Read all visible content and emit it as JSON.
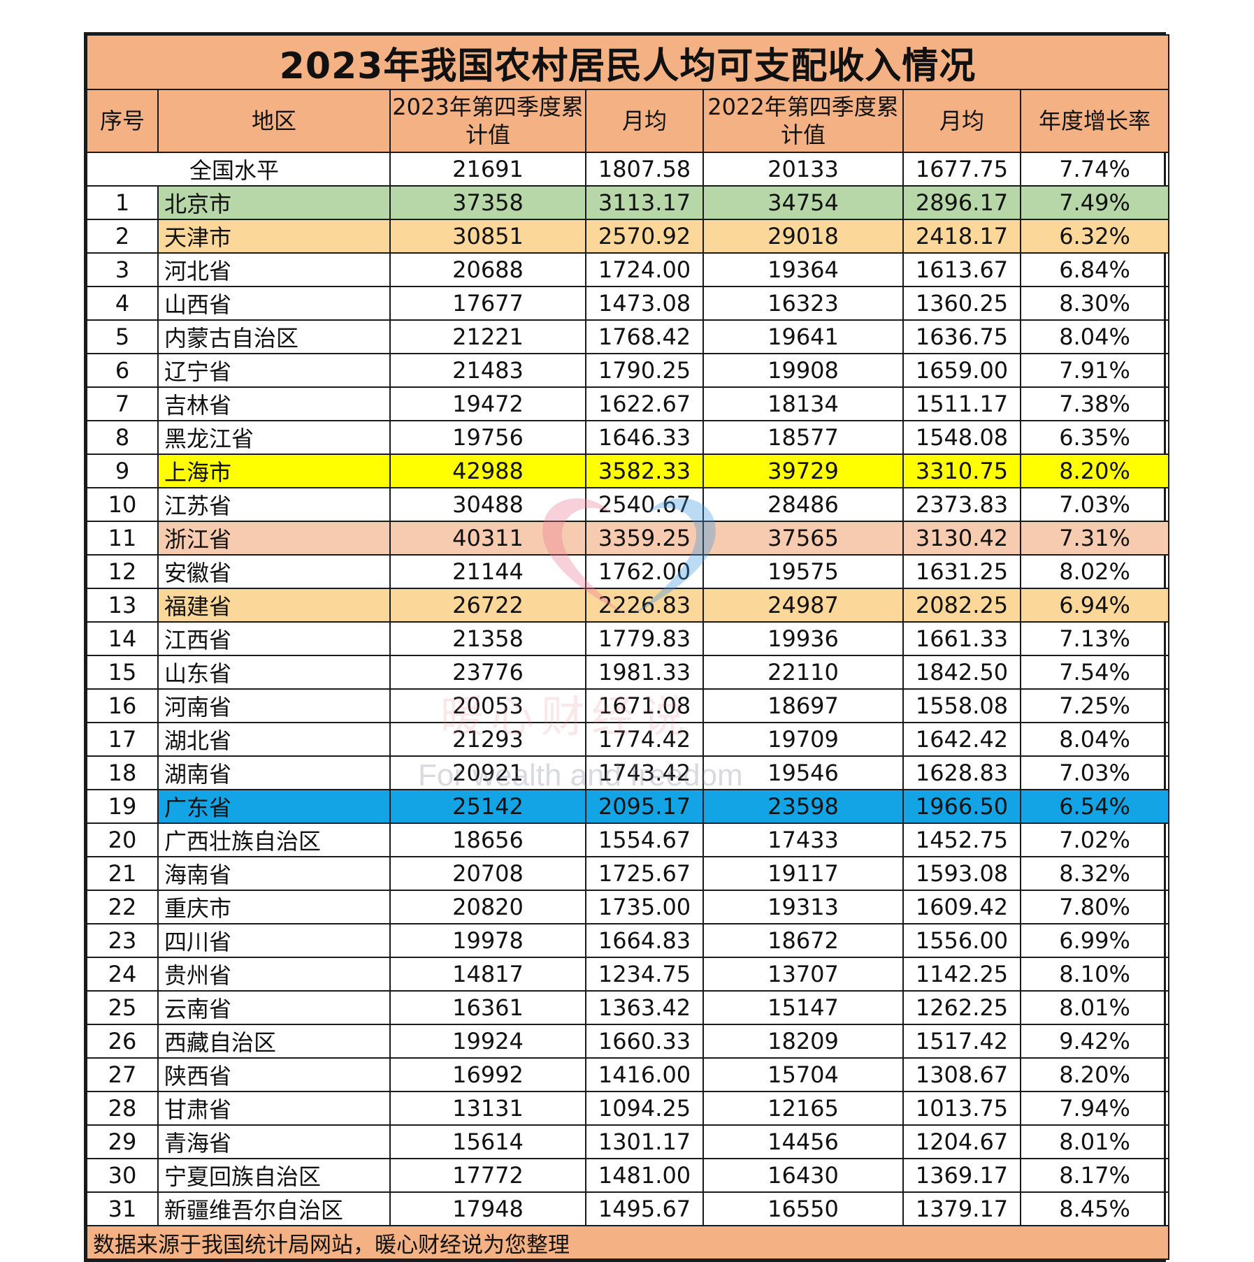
{
  "title": "2023年我国农村居民人均可支配收入情况",
  "headers": [
    "序号",
    "地区",
    "2023年第四季度累计值",
    "月均",
    "2022年第四季度累计值",
    "月均",
    "年度增长率"
  ],
  "national": {
    "seq": "",
    "region": "全国水平",
    "v2023": "21691",
    "m2023": "1807.58",
    "v2022": "20133",
    "m2022": "1677.75",
    "growth": "7.74%"
  },
  "rows": [
    {
      "seq": "1",
      "region": "北京市",
      "v2023": "37358",
      "m2023": "3113.17",
      "v2022": "34754",
      "m2022": "2896.17",
      "growth": "7.49%",
      "highlight": "green"
    },
    {
      "seq": "2",
      "region": "天津市",
      "v2023": "30851",
      "m2023": "2570.92",
      "v2022": "29018",
      "m2022": "2418.17",
      "growth": "6.32%",
      "highlight": "peach"
    },
    {
      "seq": "3",
      "region": "河北省",
      "v2023": "20688",
      "m2023": "1724.00",
      "v2022": "19364",
      "m2022": "1613.67",
      "growth": "6.84%",
      "highlight": ""
    },
    {
      "seq": "4",
      "region": "山西省",
      "v2023": "17677",
      "m2023": "1473.08",
      "v2022": "16323",
      "m2022": "1360.25",
      "growth": "8.30%",
      "highlight": ""
    },
    {
      "seq": "5",
      "region": "内蒙古自治区",
      "v2023": "21221",
      "m2023": "1768.42",
      "v2022": "19641",
      "m2022": "1636.75",
      "growth": "8.04%",
      "highlight": ""
    },
    {
      "seq": "6",
      "region": "辽宁省",
      "v2023": "21483",
      "m2023": "1790.25",
      "v2022": "19908",
      "m2022": "1659.00",
      "growth": "7.91%",
      "highlight": ""
    },
    {
      "seq": "7",
      "region": "吉林省",
      "v2023": "19472",
      "m2023": "1622.67",
      "v2022": "18134",
      "m2022": "1511.17",
      "growth": "7.38%",
      "highlight": ""
    },
    {
      "seq": "8",
      "region": "黑龙江省",
      "v2023": "19756",
      "m2023": "1646.33",
      "v2022": "18577",
      "m2022": "1548.08",
      "growth": "6.35%",
      "highlight": ""
    },
    {
      "seq": "9",
      "region": "上海市",
      "v2023": "42988",
      "m2023": "3582.33",
      "v2022": "39729",
      "m2022": "3310.75",
      "growth": "8.20%",
      "highlight": "yellow"
    },
    {
      "seq": "10",
      "region": "江苏省",
      "v2023": "30488",
      "m2023": "2540.67",
      "v2022": "28486",
      "m2022": "2373.83",
      "growth": "7.03%",
      "highlight": ""
    },
    {
      "seq": "11",
      "region": "浙江省",
      "v2023": "40311",
      "m2023": "3359.25",
      "v2022": "37565",
      "m2022": "3130.42",
      "growth": "7.31%",
      "highlight": "salmon"
    },
    {
      "seq": "12",
      "region": "安徽省",
      "v2023": "21144",
      "m2023": "1762.00",
      "v2022": "19575",
      "m2022": "1631.25",
      "growth": "8.02%",
      "highlight": ""
    },
    {
      "seq": "13",
      "region": "福建省",
      "v2023": "26722",
      "m2023": "2226.83",
      "v2022": "24987",
      "m2022": "2082.25",
      "growth": "6.94%",
      "highlight": "peach"
    },
    {
      "seq": "14",
      "region": "江西省",
      "v2023": "21358",
      "m2023": "1779.83",
      "v2022": "19936",
      "m2022": "1661.33",
      "growth": "7.13%",
      "highlight": ""
    },
    {
      "seq": "15",
      "region": "山东省",
      "v2023": "23776",
      "m2023": "1981.33",
      "v2022": "22110",
      "m2022": "1842.50",
      "growth": "7.54%",
      "highlight": ""
    },
    {
      "seq": "16",
      "region": "河南省",
      "v2023": "20053",
      "m2023": "1671.08",
      "v2022": "18697",
      "m2022": "1558.08",
      "growth": "7.25%",
      "highlight": ""
    },
    {
      "seq": "17",
      "region": "湖北省",
      "v2023": "21293",
      "m2023": "1774.42",
      "v2022": "19709",
      "m2022": "1642.42",
      "growth": "8.04%",
      "highlight": ""
    },
    {
      "seq": "18",
      "region": "湖南省",
      "v2023": "20921",
      "m2023": "1743.42",
      "v2022": "19546",
      "m2022": "1628.83",
      "growth": "7.03%",
      "highlight": ""
    },
    {
      "seq": "19",
      "region": "广东省",
      "v2023": "25142",
      "m2023": "2095.17",
      "v2022": "23598",
      "m2022": "1966.50",
      "growth": "6.54%",
      "highlight": "blue"
    },
    {
      "seq": "20",
      "region": "广西壮族自治区",
      "v2023": "18656",
      "m2023": "1554.67",
      "v2022": "17433",
      "m2022": "1452.75",
      "growth": "7.02%",
      "highlight": ""
    },
    {
      "seq": "21",
      "region": "海南省",
      "v2023": "20708",
      "m2023": "1725.67",
      "v2022": "19117",
      "m2022": "1593.08",
      "growth": "8.32%",
      "highlight": ""
    },
    {
      "seq": "22",
      "region": "重庆市",
      "v2023": "20820",
      "m2023": "1735.00",
      "v2022": "19313",
      "m2022": "1609.42",
      "growth": "7.80%",
      "highlight": ""
    },
    {
      "seq": "23",
      "region": "四川省",
      "v2023": "19978",
      "m2023": "1664.83",
      "v2022": "18672",
      "m2022": "1556.00",
      "growth": "6.99%",
      "highlight": ""
    },
    {
      "seq": "24",
      "region": "贵州省",
      "v2023": "14817",
      "m2023": "1234.75",
      "v2022": "13707",
      "m2022": "1142.25",
      "growth": "8.10%",
      "highlight": ""
    },
    {
      "seq": "25",
      "region": "云南省",
      "v2023": "16361",
      "m2023": "1363.42",
      "v2022": "15147",
      "m2022": "1262.25",
      "growth": "8.01%",
      "highlight": ""
    },
    {
      "seq": "26",
      "region": "西藏自治区",
      "v2023": "19924",
      "m2023": "1660.33",
      "v2022": "18209",
      "m2022": "1517.42",
      "growth": "9.42%",
      "highlight": ""
    },
    {
      "seq": "27",
      "region": "陕西省",
      "v2023": "16992",
      "m2023": "1416.00",
      "v2022": "15704",
      "m2022": "1308.67",
      "growth": "8.20%",
      "highlight": ""
    },
    {
      "seq": "28",
      "region": "甘肃省",
      "v2023": "13131",
      "m2023": "1094.25",
      "v2022": "12165",
      "m2022": "1013.75",
      "growth": "7.94%",
      "highlight": ""
    },
    {
      "seq": "29",
      "region": "青海省",
      "v2023": "15614",
      "m2023": "1301.17",
      "v2022": "14456",
      "m2022": "1204.67",
      "growth": "8.01%",
      "highlight": ""
    },
    {
      "seq": "30",
      "region": "宁夏回族自治区",
      "v2023": "17772",
      "m2023": "1481.00",
      "v2022": "16430",
      "m2022": "1369.17",
      "growth": "8.17%",
      "highlight": ""
    },
    {
      "seq": "31",
      "region": "新疆维吾尔自治区",
      "v2023": "17948",
      "m2023": "1495.67",
      "v2022": "16550",
      "m2022": "1379.17",
      "growth": "8.45%",
      "highlight": ""
    }
  ],
  "footer": "数据来源于我国统计局网站，暖心财经说为您整理",
  "watermark": {
    "text_cn": "暖心财经说",
    "text_en": "For wealth and freedom",
    "icon": "heart-logo-icon"
  },
  "colors": {
    "header_bg": "#f4b183",
    "green": "#b7d7a8",
    "peach": "#fbd89a",
    "yellow": "#ffff00",
    "salmon": "#f7cbb0",
    "blue": "#12a4e4"
  }
}
